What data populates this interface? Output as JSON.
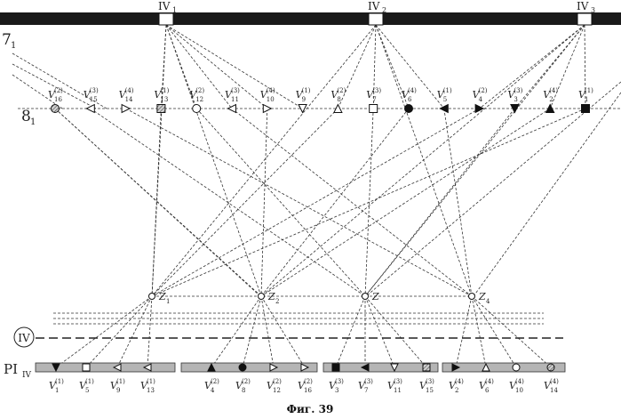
{
  "diagram": {
    "top_bar_label": "7",
    "top_bar_sub": "1",
    "row_label": "8",
    "row_sub": "1",
    "iv_label": "IV",
    "pi_label": "PI",
    "pi_sub": "IV",
    "caption": "Фиг. 39",
    "nodes": [
      {
        "label": "IV",
        "sub": "1"
      },
      {
        "label": "IV",
        "sub": "2"
      },
      {
        "label": "IV",
        "sub": "3"
      }
    ],
    "row_items": [
      {
        "v": "V",
        "sup": "(2)",
        "sub": "16",
        "shape": "circle-hatch"
      },
      {
        "v": "V",
        "sup": "(3)",
        "sub": "15",
        "shape": "tri-left-open"
      },
      {
        "v": "V",
        "sup": "(4)",
        "sub": "14",
        "shape": "tri-right-open"
      },
      {
        "v": "V",
        "sup": "(1)",
        "sub": "13",
        "shape": "square-hatch"
      },
      {
        "v": "V",
        "sup": "(2)",
        "sub": "12",
        "shape": "circle-open"
      },
      {
        "v": "V",
        "sup": "(3)",
        "sub": "11",
        "shape": "tri-left-open"
      },
      {
        "v": "V",
        "sup": "(4)",
        "sub": "10",
        "shape": "tri-right-open"
      },
      {
        "v": "V",
        "sup": "(1)",
        "sub": "9",
        "shape": "tri-down-open"
      },
      {
        "v": "V",
        "sup": "(2)",
        "sub": "8",
        "shape": "tri-up-open"
      },
      {
        "v": "V",
        "sup": "(3)",
        "sub": "7",
        "shape": "square-open"
      },
      {
        "v": "V",
        "sup": "(4)",
        "sub": "6",
        "shape": "circle-filled"
      },
      {
        "v": "V",
        "sup": "(1)",
        "sub": "5",
        "shape": "tri-left-filled"
      },
      {
        "v": "V",
        "sup": "(2)",
        "sub": "4",
        "shape": "tri-right-filled"
      },
      {
        "v": "V",
        "sup": "(3)",
        "sub": "3",
        "shape": "tri-down-filled"
      },
      {
        "v": "V",
        "sup": "(4)",
        "sub": "2",
        "shape": "tri-up-filled"
      },
      {
        "v": "V",
        "sup": "(1)",
        "sub": "1",
        "shape": "square-filled"
      }
    ],
    "z_nodes": [
      {
        "label": "Z",
        "sub": "1"
      },
      {
        "label": "Z",
        "sub": "2"
      },
      {
        "label": "Z",
        "sub": ""
      },
      {
        "label": "Z",
        "sub": "4"
      }
    ],
    "groups": [
      {
        "items": [
          {
            "v": "V",
            "sup": "(1)",
            "sub": "1",
            "shape": "tri-down-filled"
          },
          {
            "v": "V",
            "sup": "(1)",
            "sub": "5",
            "shape": "square-open"
          },
          {
            "v": "V",
            "sup": "(1)",
            "sub": "9",
            "shape": "tri-left-open"
          },
          {
            "v": "V",
            "sup": "(1)",
            "sub": "13",
            "shape": "tri-left-open"
          }
        ]
      },
      {
        "items": [
          {
            "v": "V",
            "sup": "(2)",
            "sub": "4",
            "shape": "tri-up-filled"
          },
          {
            "v": "V",
            "sup": "(2)",
            "sub": "8",
            "shape": "circle-filled"
          },
          {
            "v": "V",
            "sup": "(2)",
            "sub": "12",
            "shape": "tri-right-open"
          },
          {
            "v": "V",
            "sup": "(2)",
            "sub": "16",
            "shape": "tri-right-open"
          }
        ]
      },
      {
        "items": [
          {
            "v": "V",
            "sup": "(3)",
            "sub": "3",
            "shape": "square-filled"
          },
          {
            "v": "V",
            "sup": "(3)",
            "sub": "7",
            "shape": "tri-left-filled"
          },
          {
            "v": "V",
            "sup": "(3)",
            "sub": "11",
            "shape": "tri-down-open"
          },
          {
            "v": "V",
            "sup": "(3)",
            "sub": "15",
            "shape": "square-hatch"
          }
        ]
      },
      {
        "items": [
          {
            "v": "V",
            "sup": "(4)",
            "sub": "2",
            "shape": "tri-right-filled"
          },
          {
            "v": "V",
            "sup": "(4)",
            "sub": "6",
            "shape": "tri-up-open"
          },
          {
            "v": "V",
            "sup": "(4)",
            "sub": "10",
            "shape": "circle-open"
          },
          {
            "v": "V",
            "sup": "(4)",
            "sub": "14",
            "shape": "circle-hatch"
          }
        ]
      }
    ]
  }
}
